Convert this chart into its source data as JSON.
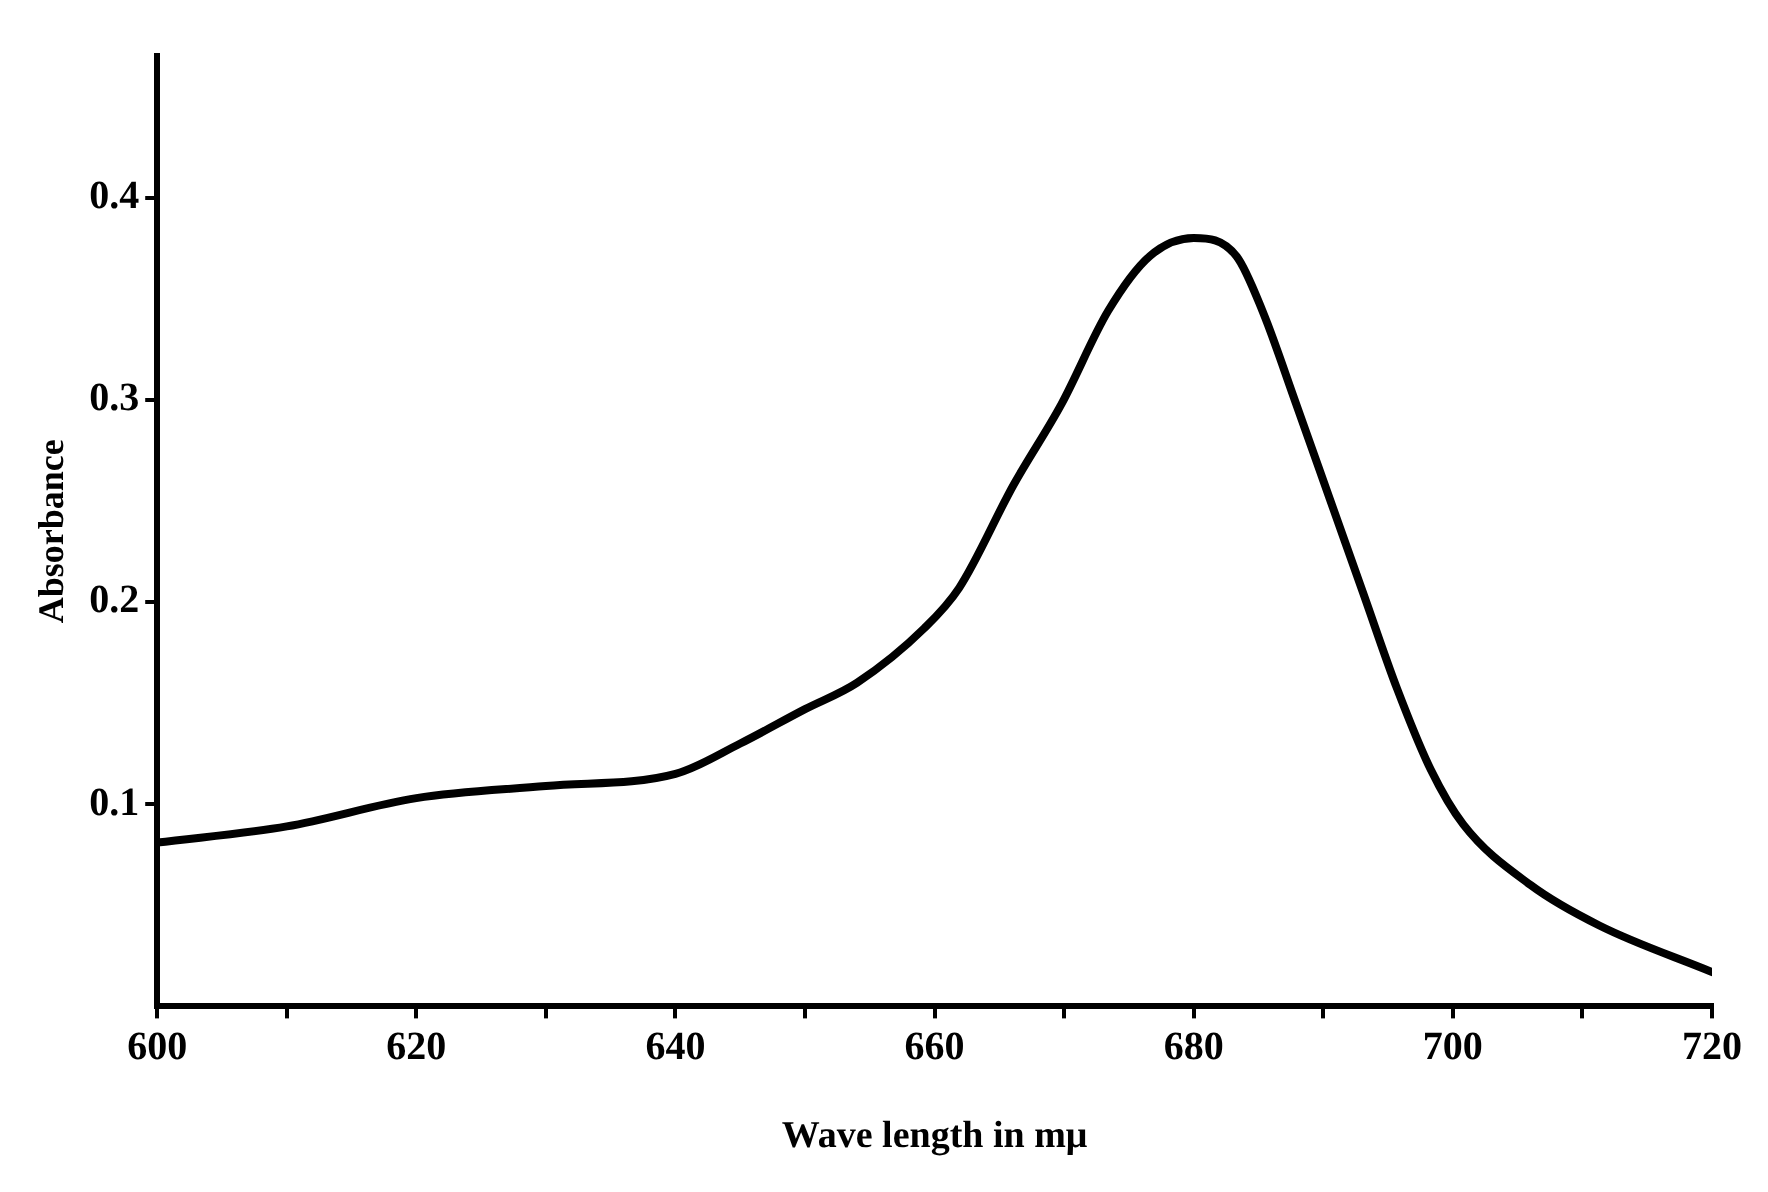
{
  "chart_data": {
    "type": "line",
    "xlabel": "Wave length in mμ",
    "ylabel": "Absorbance",
    "xlim": [
      600,
      720
    ],
    "xticks": [
      600,
      {
        "value": 610,
        "label": null
      },
      620,
      {
        "value": 630,
        "label": null
      },
      640,
      {
        "value": 650,
        "label": null
      },
      660,
      {
        "value": 670,
        "label": null
      },
      680,
      {
        "value": 690,
        "label": null
      },
      700,
      {
        "value": 710,
        "label": null
      },
      720
    ],
    "ylim": [
      0,
      0.47
    ],
    "yticks": [
      0.1,
      0.2,
      0.3,
      0.4
    ],
    "marker": "none",
    "line_style": "solid",
    "legend": false,
    "series": [
      {
        "color": "#000000",
        "x": [
          600,
          610,
          620,
          630,
          640,
          645,
          650,
          654,
          659.2,
          661.9,
          666.1,
          669.8,
          673.4,
          676.6,
          680,
          683.3,
          685.3,
          687.9,
          690.5,
          693.1,
          695.7,
          698.3,
          700.8,
          706,
          711.3,
          720
        ],
        "values": [
          0.081,
          0.089,
          0.103,
          0.109,
          0.115,
          0.13,
          0.147,
          0.16,
          0.187,
          0.207,
          0.258,
          0.298,
          0.344,
          0.371,
          0.38,
          0.371,
          0.344,
          0.298,
          0.251,
          0.204,
          0.157,
          0.117,
          0.09,
          0.06,
          0.04,
          0.017
        ]
      }
    ]
  }
}
